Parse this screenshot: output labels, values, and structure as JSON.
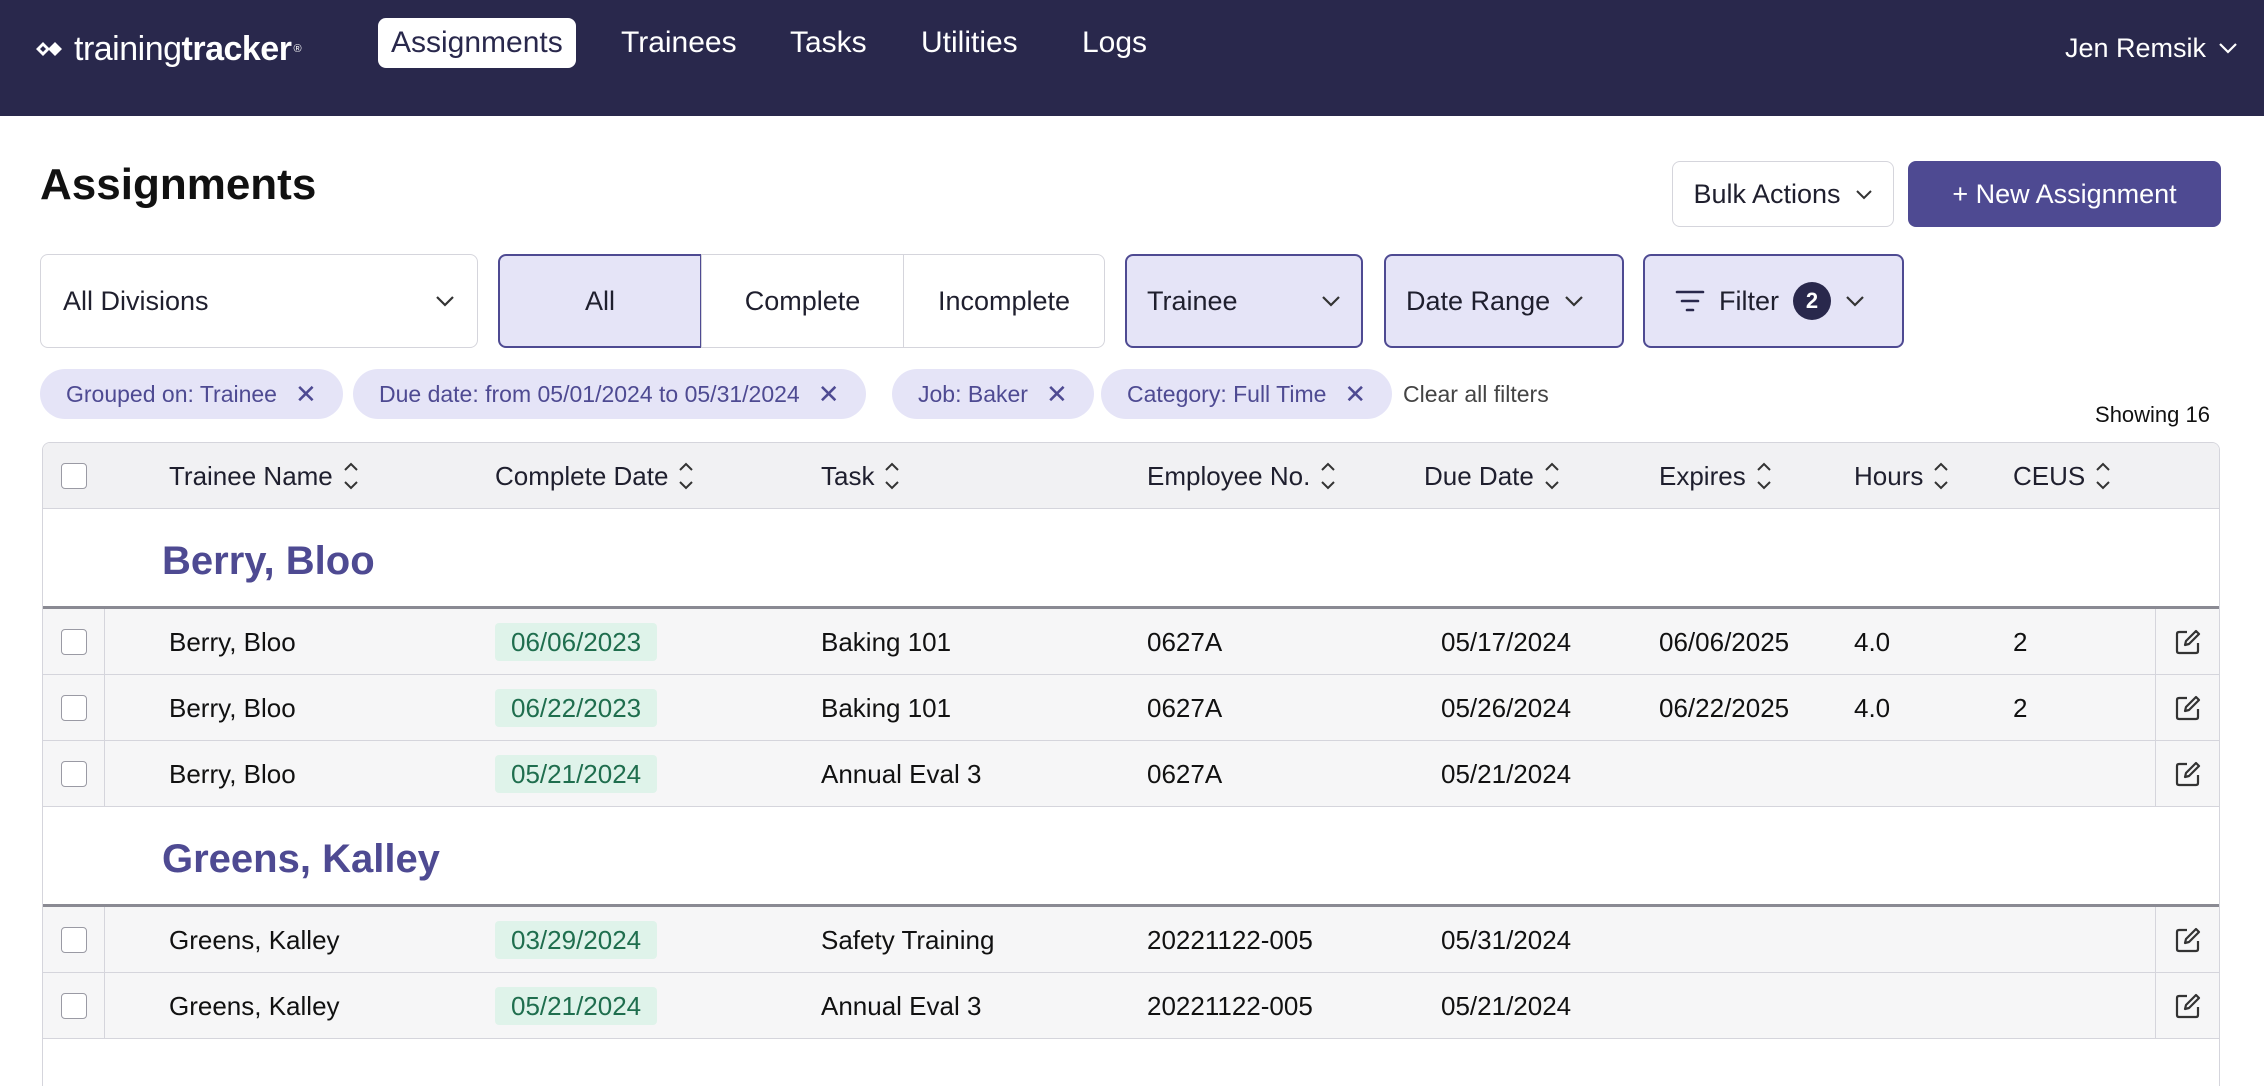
{
  "app": {
    "brand_light": "training",
    "brand_bold": "tracker",
    "brand_reg": "®",
    "nav": [
      {
        "label": "Assignments",
        "active": true
      },
      {
        "label": "Trainees"
      },
      {
        "label": "Tasks"
      },
      {
        "label": "Utilities"
      },
      {
        "label": "Logs"
      }
    ],
    "user": "Jen Remsik"
  },
  "page": {
    "title": "Assignments",
    "bulk_actions": "Bulk Actions",
    "new_assignment": "+ New Assignment"
  },
  "controls": {
    "division": "All Divisions",
    "segments": [
      "All",
      "Complete",
      "Incomplete"
    ],
    "active_segment": "All",
    "trainee_dropdown": "Trainee",
    "date_range_dropdown": "Date Range",
    "filter_label": "Filter",
    "filter_count": "2"
  },
  "chips": [
    "Grouped on: Trainee",
    "Due date: from 05/01/2024 to 05/31/2024",
    "Job: Baker",
    "Category: Full Time"
  ],
  "clear_all": "Clear all filters",
  "showing": "Showing 16",
  "table": {
    "columns": [
      "Trainee Name",
      "Complete Date",
      "Task",
      "Employee No.",
      "Due Date",
      "Expires",
      "Hours",
      "CEUS"
    ],
    "groups": [
      {
        "name": "Berry, Bloo",
        "rows": [
          {
            "trainee": "Berry, Bloo",
            "complete": "06/06/2023",
            "task": "Baking 101",
            "emp": "0627A",
            "due": "05/17/2024",
            "expires": "06/06/2025",
            "hours": "4.0",
            "ceus": "2"
          },
          {
            "trainee": "Berry, Bloo",
            "complete": "06/22/2023",
            "task": "Baking 101",
            "emp": "0627A",
            "due": "05/26/2024",
            "expires": "06/22/2025",
            "hours": "4.0",
            "ceus": "2"
          },
          {
            "trainee": "Berry, Bloo",
            "complete": "05/21/2024",
            "task": "Annual Eval 3",
            "emp": "0627A",
            "due": "05/21/2024",
            "expires": "",
            "hours": "",
            "ceus": ""
          }
        ]
      },
      {
        "name": "Greens, Kalley",
        "rows": [
          {
            "trainee": "Greens, Kalley",
            "complete": "03/29/2024",
            "task": "Safety Training",
            "emp": "20221122-005",
            "due": "05/31/2024",
            "expires": "",
            "hours": "",
            "ceus": ""
          },
          {
            "trainee": "Greens, Kalley",
            "complete": "05/21/2024",
            "task": "Annual Eval 3",
            "emp": "20221122-005",
            "due": "05/21/2024",
            "expires": "",
            "hours": "",
            "ceus": ""
          }
        ]
      }
    ]
  },
  "colors": {
    "nav_bg": "#29284c",
    "accent": "#4e4a92",
    "accent_light": "#e5e4f7",
    "complete_pill_bg": "#dff3ea",
    "complete_pill_text": "#1f6e4e"
  }
}
